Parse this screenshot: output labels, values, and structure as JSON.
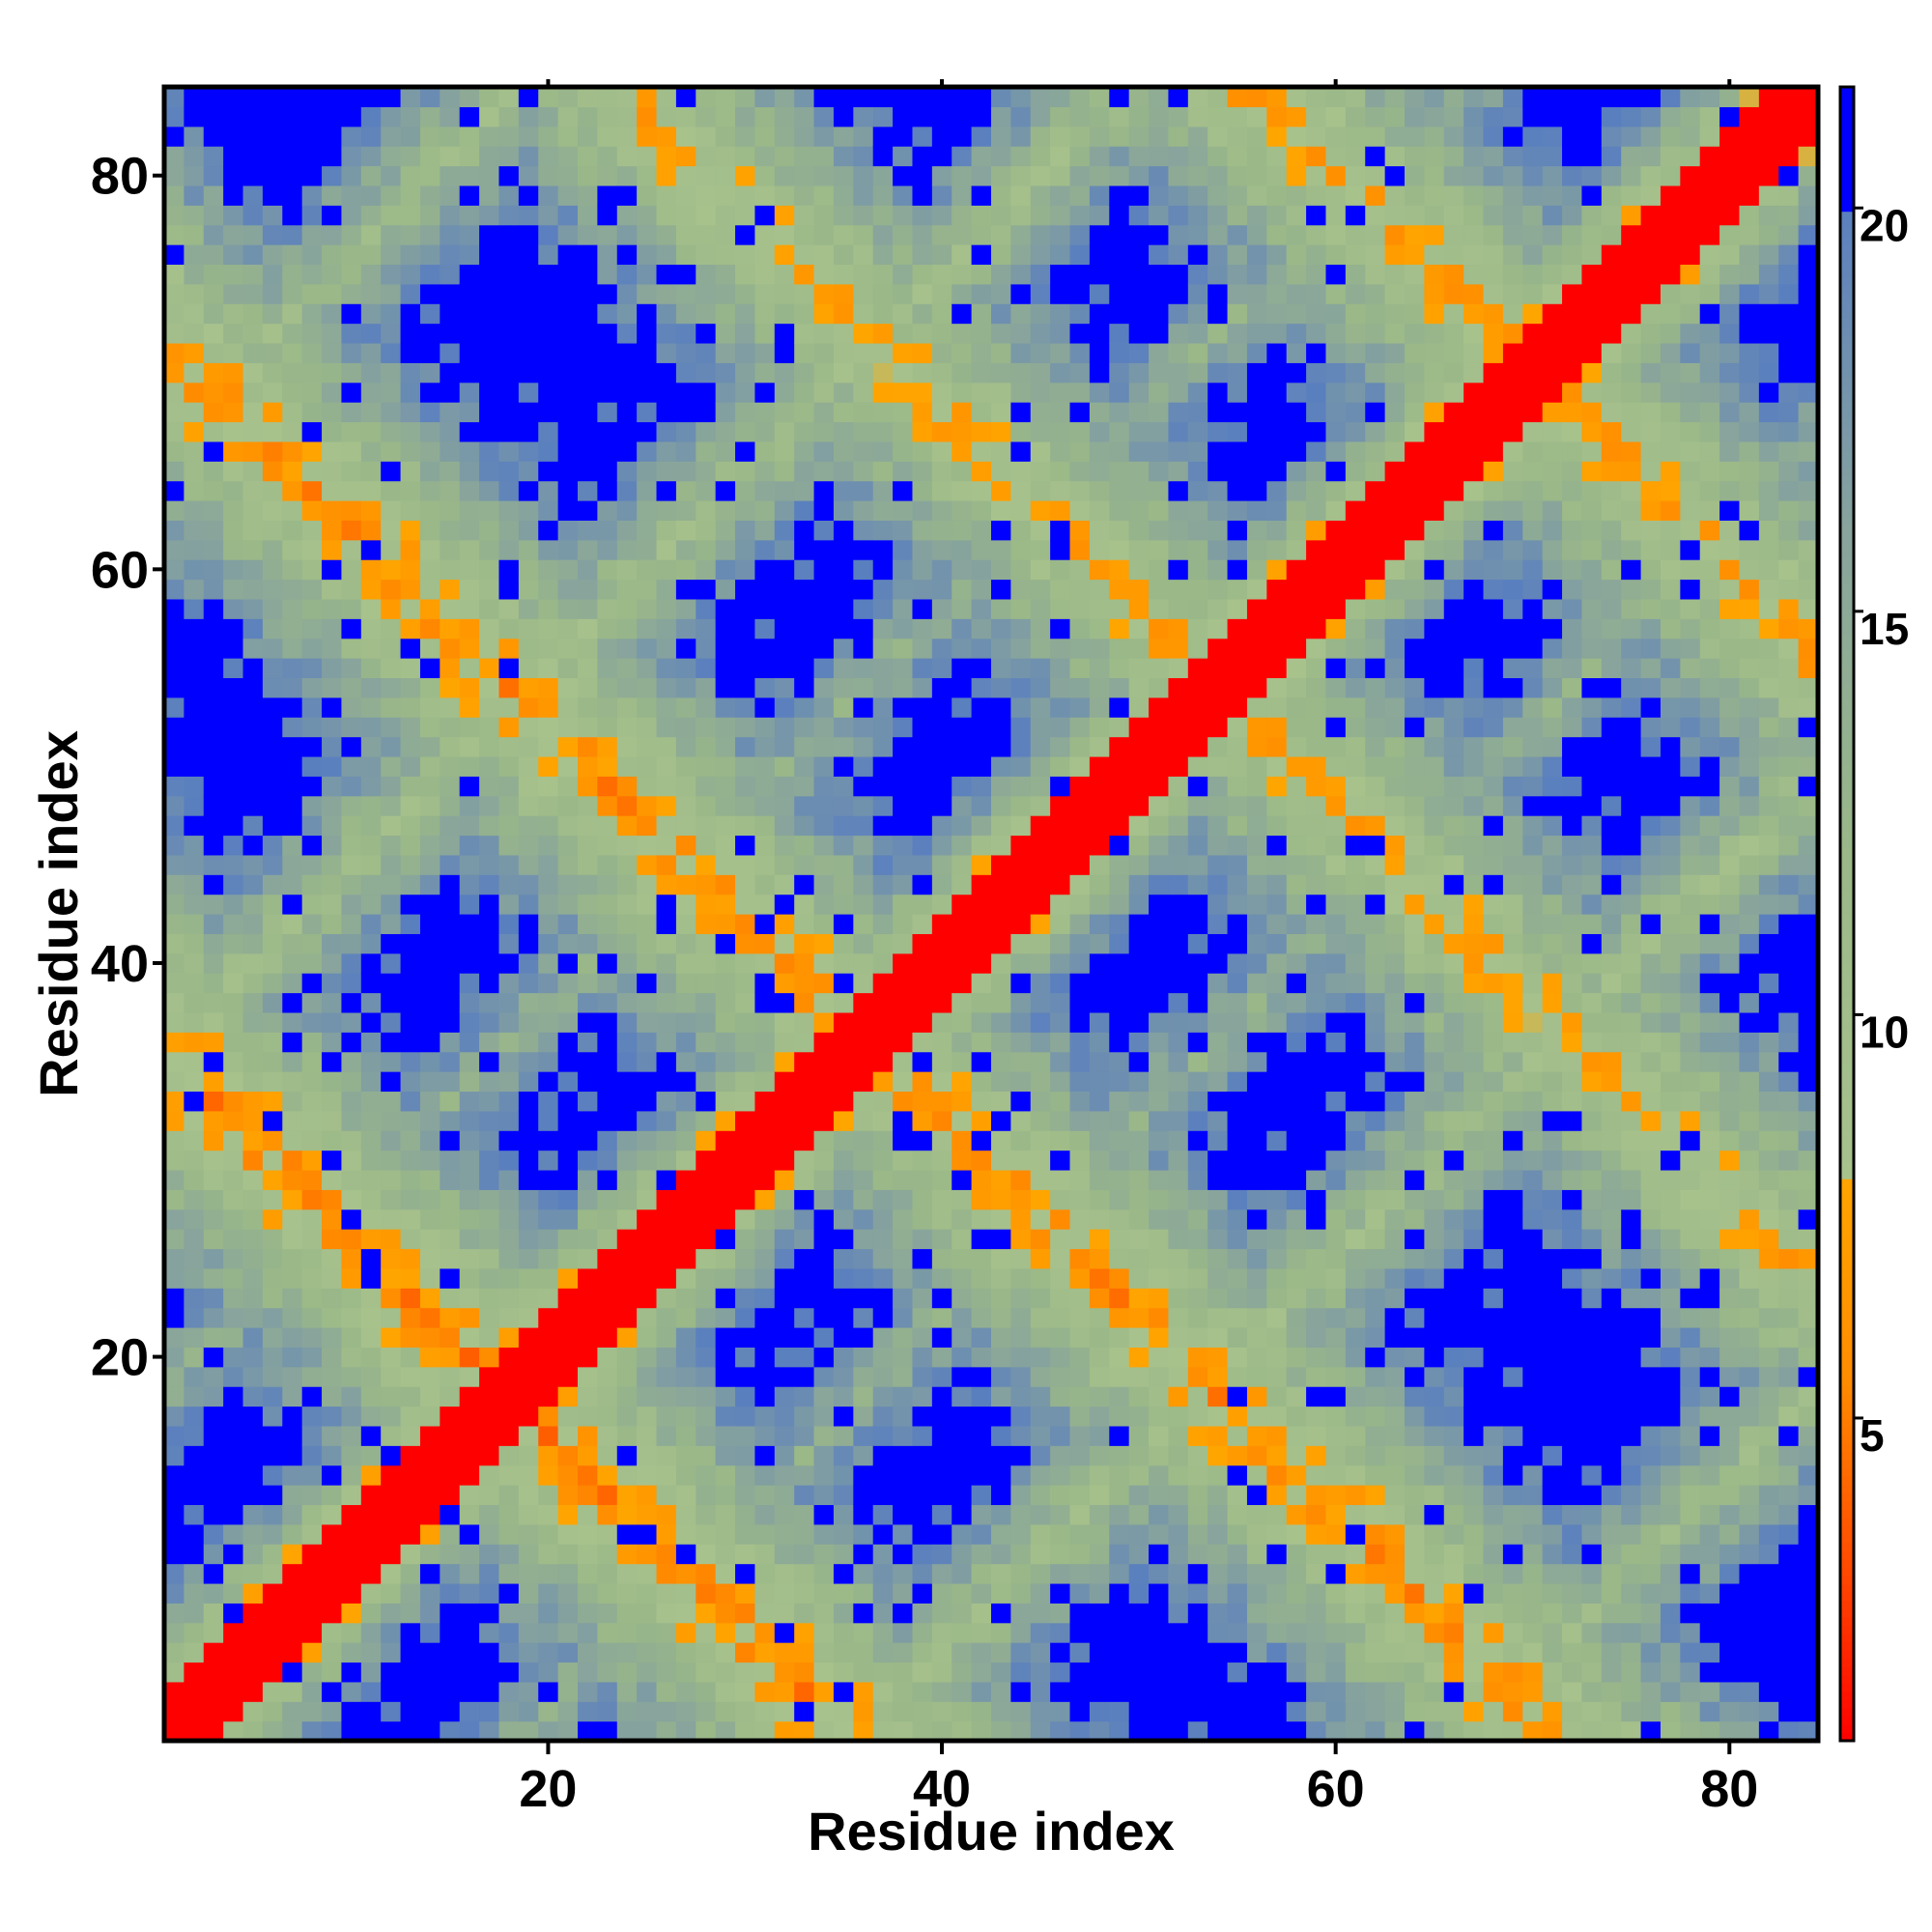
{
  "chart_data": {
    "type": "heatmap",
    "title": "",
    "xlabel": "Residue index",
    "ylabel": "Residue index",
    "n_residues": 84,
    "xlim": [
      0.5,
      84.5
    ],
    "ylim": [
      0.5,
      84.5
    ],
    "x_ticks": [
      20,
      40,
      60,
      80
    ],
    "y_ticks": [
      20,
      40,
      60,
      80
    ],
    "colorbar": {
      "ticks": [
        5,
        10,
        15,
        20
      ],
      "range": [
        1,
        21.5
      ],
      "stops": [
        {
          "value": 1.0,
          "color": "#ff0000"
        },
        {
          "value": 3.0,
          "color": "#ff4500"
        },
        {
          "value": 5.5,
          "color": "#ff8c00"
        },
        {
          "value": 8.0,
          "color": "#ffa500"
        },
        {
          "value": 8.01,
          "color": "#a8c28c"
        },
        {
          "value": 12.0,
          "color": "#9ab888"
        },
        {
          "value": 16.0,
          "color": "#88a49c"
        },
        {
          "value": 20.0,
          "color": "#5a7fbf"
        },
        {
          "value": 20.01,
          "color": "#0000ff"
        },
        {
          "value": 21.5,
          "color": "#0000ff"
        }
      ]
    },
    "description_of_values": "Pairwise residue distance map (symmetric). Diagonal |i-j|<=2 is lowest (red); secondary contact bands run perpendicular to the diagonal crossing near (37,37) and near (70,70) and (20,20) forming a lattice; far regions saturate at the maximum (blue).",
    "contact_bands": [
      {
        "axis": "anti",
        "sum": 72,
        "strength": 6.5
      },
      {
        "axis": "anti",
        "sum": 140,
        "strength": 7.0
      },
      {
        "axis": "anti",
        "sum": 36,
        "strength": 6.0
      },
      {
        "axis": "anti",
        "sum": 108,
        "strength": 7.5
      },
      {
        "axis": "diag",
        "offset": 35,
        "strength": 10.5
      },
      {
        "axis": "diag",
        "offset": 66,
        "strength": 11.0
      },
      {
        "axis": "diag",
        "offset": 18,
        "strength": 14.0
      }
    ],
    "grid": false,
    "legend": "colorbar-right"
  }
}
